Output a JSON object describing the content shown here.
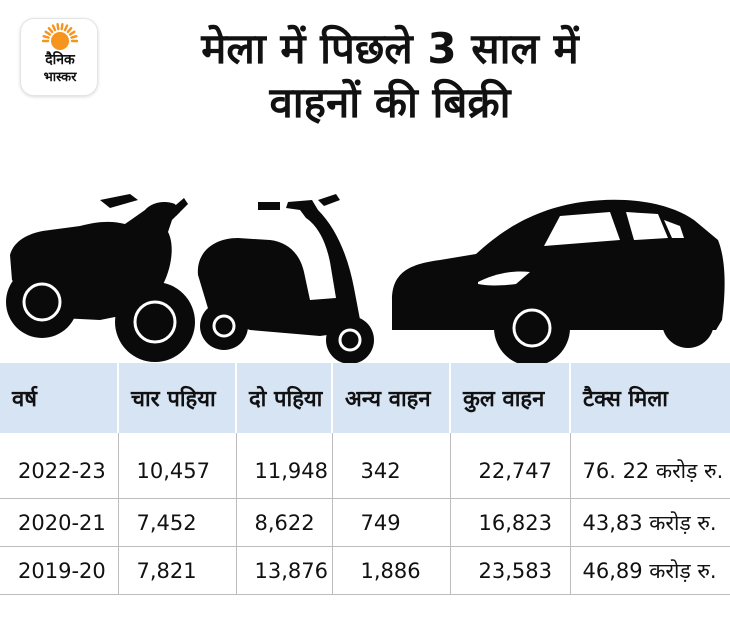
{
  "logo": {
    "line1": "दैनिक",
    "line2": "भास्कर",
    "accent_color": "#f7941d"
  },
  "title": {
    "line1": "मेला में पिछले 3 साल में",
    "line2": "वाहनों की बिक्री"
  },
  "illustration": {
    "icons": [
      "motorcycle-icon",
      "scooter-icon",
      "car-icon"
    ],
    "fill_color": "#0a0a0a"
  },
  "chart_data": {
    "type": "table",
    "header_color": "#d7e4f4",
    "columns": [
      "वर्ष",
      "चार पहिया",
      "दो पहिया",
      "अन्य वाहन",
      "कुल वाहन",
      "टैक्स मिला"
    ],
    "rows": [
      [
        "2022-23",
        "10,457",
        "11,948",
        "342",
        "22,747",
        "76. 22 करोड़ रु."
      ],
      [
        "2020-21",
        "7,452",
        "8,622",
        "749",
        "16,823",
        "43,83 करोड़ रु."
      ],
      [
        "2019-20",
        "7,821",
        "13,876",
        "1,886",
        "23,583",
        "46,89 करोड़ रु."
      ]
    ]
  }
}
